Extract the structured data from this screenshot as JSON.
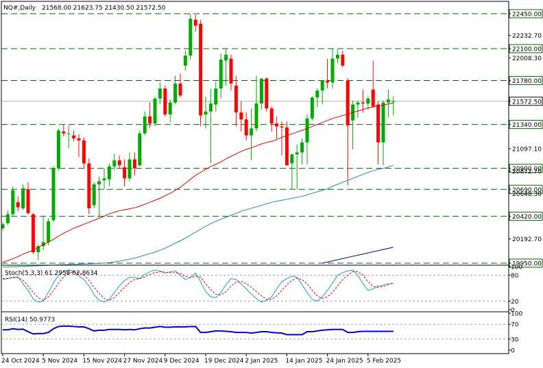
{
  "header": {
    "symbol": "NQ#,Daily",
    "ohlc": "21568.00 21623.75 21430.50 21572.50"
  },
  "colors": {
    "bull": "#00aa00",
    "bear": "#ff0000",
    "ma_fast": "#dd0000",
    "ma_slow": "#1a8fa0",
    "trendline": "#000080",
    "level_line": "#006400",
    "price_tag_bg": "#ffffff",
    "stoch_main": "#1aa0c0",
    "stoch_signal": "#dd0000",
    "rsi": "#0000cc"
  },
  "chart_data": {
    "type": "candlestick",
    "title": "NQ#,Daily",
    "price_axis": {
      "min": 19950,
      "max": 22450,
      "ticks": [
        "22450.00",
        "22232.70",
        "22100.00",
        "22008.30",
        "21780.00",
        "21572.50",
        "21340.00",
        "21097.10",
        "20900.00",
        "20872.70",
        "20690.00",
        "20648.30",
        "20420.00",
        "20192.70",
        "19950.00"
      ],
      "tick_values": [
        22450,
        22232.7,
        22100,
        22008.3,
        21780,
        21572.5,
        21340,
        21097.1,
        20900,
        20872.7,
        20690,
        20648.3,
        20420,
        20192.7,
        19950
      ],
      "highlighted": [
        "22450.00",
        "22100.00",
        "21780.00",
        "21572.50",
        "21340.00",
        "20900.00",
        "20690.00",
        "20420.00",
        "19950.00"
      ]
    },
    "horizontal_levels": [
      22450,
      22100,
      21780,
      21340,
      20900,
      20690,
      20420,
      19950
    ],
    "current_price": 21572.5,
    "x_labels": [
      "24 Oct 2024",
      "5 Nov 2024",
      "15 Nov 2024",
      "27 Nov 2024",
      "9 Dec 2024",
      "19 Dec 2024",
      "2 Jan 2025",
      "14 Jan 2025",
      "24 Jan 2025",
      "5 Feb 2025"
    ],
    "x_label_index": [
      0,
      8,
      16,
      24,
      32,
      40,
      48,
      56,
      64,
      72
    ],
    "candles": [
      {
        "o": 20300,
        "h": 20360,
        "l": 20280,
        "c": 20340
      },
      {
        "o": 20350,
        "h": 20480,
        "l": 20330,
        "c": 20440
      },
      {
        "o": 20440,
        "h": 20720,
        "l": 20420,
        "c": 20680
      },
      {
        "o": 20560,
        "h": 20620,
        "l": 20470,
        "c": 20510
      },
      {
        "o": 20500,
        "h": 20740,
        "l": 20480,
        "c": 20700
      },
      {
        "o": 20690,
        "h": 20760,
        "l": 20440,
        "c": 20450
      },
      {
        "o": 20440,
        "h": 20450,
        "l": 20040,
        "c": 20060
      },
      {
        "o": 20060,
        "h": 20140,
        "l": 19980,
        "c": 20120
      },
      {
        "o": 20120,
        "h": 20420,
        "l": 20080,
        "c": 20160
      },
      {
        "o": 20160,
        "h": 20400,
        "l": 20130,
        "c": 20370
      },
      {
        "o": 20380,
        "h": 20920,
        "l": 20360,
        "c": 20900
      },
      {
        "o": 20900,
        "h": 21300,
        "l": 20880,
        "c": 21280
      },
      {
        "o": 21270,
        "h": 21340,
        "l": 21220,
        "c": 21250
      },
      {
        "o": 21250,
        "h": 21330,
        "l": 21100,
        "c": 21250
      },
      {
        "o": 21230,
        "h": 21280,
        "l": 21170,
        "c": 21200
      },
      {
        "o": 21200,
        "h": 21240,
        "l": 21010,
        "c": 21180
      },
      {
        "o": 21180,
        "h": 21210,
        "l": 20900,
        "c": 20950
      },
      {
        "o": 20950,
        "h": 21000,
        "l": 20440,
        "c": 20500
      },
      {
        "o": 20530,
        "h": 20760,
        "l": 20500,
        "c": 20740
      },
      {
        "o": 20740,
        "h": 20820,
        "l": 20410,
        "c": 20770
      },
      {
        "o": 20780,
        "h": 20900,
        "l": 20690,
        "c": 20800
      },
      {
        "o": 20790,
        "h": 20950,
        "l": 20720,
        "c": 20920
      },
      {
        "o": 20920,
        "h": 21050,
        "l": 20880,
        "c": 20980
      },
      {
        "o": 20980,
        "h": 21030,
        "l": 20900,
        "c": 20930
      },
      {
        "o": 20910,
        "h": 20990,
        "l": 20720,
        "c": 20800
      },
      {
        "o": 20800,
        "h": 21060,
        "l": 20770,
        "c": 20990
      },
      {
        "o": 20990,
        "h": 21060,
        "l": 20830,
        "c": 20900
      },
      {
        "o": 20930,
        "h": 21280,
        "l": 20920,
        "c": 21250
      },
      {
        "o": 21250,
        "h": 21470,
        "l": 21230,
        "c": 21420
      },
      {
        "o": 21420,
        "h": 21560,
        "l": 21310,
        "c": 21350
      },
      {
        "o": 21350,
        "h": 21620,
        "l": 21320,
        "c": 21600
      },
      {
        "o": 21600,
        "h": 21760,
        "l": 21540,
        "c": 21700
      },
      {
        "o": 21700,
        "h": 21730,
        "l": 21420,
        "c": 21440
      },
      {
        "o": 21440,
        "h": 21590,
        "l": 21360,
        "c": 21560
      },
      {
        "o": 21560,
        "h": 21830,
        "l": 21540,
        "c": 21750
      },
      {
        "o": 21750,
        "h": 21850,
        "l": 21610,
        "c": 21630
      },
      {
        "o": 21930,
        "h": 22080,
        "l": 21880,
        "c": 22030
      },
      {
        "o": 22030,
        "h": 22450,
        "l": 21990,
        "c": 22400
      },
      {
        "o": 22390,
        "h": 22440,
        "l": 22270,
        "c": 22330
      },
      {
        "o": 22350,
        "h": 22390,
        "l": 21320,
        "c": 21430
      },
      {
        "o": 21440,
        "h": 21620,
        "l": 21300,
        "c": 21470
      },
      {
        "o": 21470,
        "h": 21700,
        "l": 20950,
        "c": 21550
      },
      {
        "o": 21540,
        "h": 21770,
        "l": 21470,
        "c": 21700
      },
      {
        "o": 21700,
        "h": 22050,
        "l": 21600,
        "c": 21990
      },
      {
        "o": 21980,
        "h": 22100,
        "l": 21730,
        "c": 22040
      },
      {
        "o": 22000,
        "h": 22040,
        "l": 21680,
        "c": 21750
      },
      {
        "o": 21730,
        "h": 21830,
        "l": 21320,
        "c": 21460
      },
      {
        "o": 21460,
        "h": 21570,
        "l": 21270,
        "c": 21390
      },
      {
        "o": 21390,
        "h": 21460,
        "l": 21180,
        "c": 21230
      },
      {
        "o": 21230,
        "h": 21500,
        "l": 20980,
        "c": 21300
      },
      {
        "o": 21300,
        "h": 21830,
        "l": 21270,
        "c": 21550
      },
      {
        "o": 21550,
        "h": 21800,
        "l": 21490,
        "c": 21800
      },
      {
        "o": 21800,
        "h": 21810,
        "l": 21470,
        "c": 21500
      },
      {
        "o": 21500,
        "h": 21520,
        "l": 21270,
        "c": 21350
      },
      {
        "o": 21350,
        "h": 21420,
        "l": 21200,
        "c": 21320
      },
      {
        "o": 21320,
        "h": 21370,
        "l": 21030,
        "c": 21310
      },
      {
        "o": 21310,
        "h": 21370,
        "l": 20930,
        "c": 20930
      },
      {
        "o": 20950,
        "h": 21050,
        "l": 20690,
        "c": 21040
      },
      {
        "o": 21040,
        "h": 21140,
        "l": 20690,
        "c": 21060
      },
      {
        "o": 21060,
        "h": 21200,
        "l": 20940,
        "c": 21160
      },
      {
        "o": 21160,
        "h": 21440,
        "l": 20940,
        "c": 21400
      },
      {
        "o": 21400,
        "h": 21620,
        "l": 21380,
        "c": 21610
      },
      {
        "o": 21610,
        "h": 21700,
        "l": 21510,
        "c": 21680
      },
      {
        "o": 21680,
        "h": 21780,
        "l": 21540,
        "c": 21780
      },
      {
        "o": 21780,
        "h": 22000,
        "l": 21700,
        "c": 21760
      },
      {
        "o": 21760,
        "h": 22100,
        "l": 21700,
        "c": 22000
      },
      {
        "o": 22000,
        "h": 22090,
        "l": 21950,
        "c": 22040
      },
      {
        "o": 22040,
        "h": 22080,
        "l": 21910,
        "c": 21930
      },
      {
        "o": 21780,
        "h": 21800,
        "l": 20730,
        "c": 21330
      },
      {
        "o": 21380,
        "h": 21580,
        "l": 21090,
        "c": 21540
      },
      {
        "o": 21540,
        "h": 21580,
        "l": 21410,
        "c": 21560
      },
      {
        "o": 21560,
        "h": 21690,
        "l": 21460,
        "c": 21550
      },
      {
        "o": 21550,
        "h": 21620,
        "l": 21490,
        "c": 21600
      },
      {
        "o": 21690,
        "h": 21980,
        "l": 21520,
        "c": 21520
      },
      {
        "o": 21540,
        "h": 21570,
        "l": 20940,
        "c": 21160
      },
      {
        "o": 21160,
        "h": 21580,
        "l": 20930,
        "c": 21560
      },
      {
        "o": 21560,
        "h": 21690,
        "l": 21410,
        "c": 21590
      },
      {
        "o": 21568,
        "h": 21624,
        "l": 21430,
        "c": 21572
      }
    ],
    "ma_fast": [
      19960,
      19975,
      19995,
      20015,
      20040,
      20060,
      20080,
      20110,
      20135,
      20160,
      20190,
      20220,
      20250,
      20275,
      20300,
      20320,
      20340,
      20360,
      20380,
      20400,
      20420,
      20445,
      20460,
      20475,
      20485,
      20495,
      20505,
      20520,
      20540,
      20560,
      20580,
      20600,
      20625,
      20650,
      20680,
      20710,
      20750,
      20790,
      20830,
      20860,
      20890,
      20920,
      20940,
      20965,
      20995,
      21020,
      21045,
      21070,
      21090,
      21105,
      21125,
      21145,
      21160,
      21170,
      21190,
      21210,
      21230,
      21245,
      21265,
      21280,
      21300,
      21320,
      21340,
      21360,
      21380,
      21400,
      21415,
      21430,
      21440,
      21460,
      21475,
      21490,
      21505,
      21515,
      21525,
      21535,
      21545,
      21555
    ],
    "ma_slow": [
      19910,
      19912,
      19914,
      19916,
      19918,
      19920,
      19922,
      19924,
      19926,
      19928,
      19930,
      19932,
      19934,
      19936,
      19938,
      19940,
      19942,
      19944,
      19946,
      19948,
      19950,
      19955,
      19962,
      19970,
      19980,
      19990,
      20000,
      20015,
      20030,
      20045,
      20060,
      20080,
      20100,
      20125,
      20150,
      20175,
      20200,
      20230,
      20260,
      20290,
      20320,
      20345,
      20370,
      20390,
      20410,
      20430,
      20450,
      20470,
      20485,
      20500,
      20515,
      20530,
      20545,
      20560,
      20570,
      20580,
      20590,
      20600,
      20610,
      20620,
      20635,
      20650,
      20665,
      20680,
      20695,
      20720,
      20740,
      20760,
      20780,
      20800,
      20820,
      20840,
      20860,
      20875,
      20890,
      20900,
      20915,
      20930
    ],
    "trendline": {
      "x0_index": 63,
      "y0": 19950,
      "x1_index": 77,
      "y1": 20110
    },
    "stochastic": {
      "label": "Stoch(5,3,3) 61.2958 62.8634",
      "levels": [
        100,
        80,
        20,
        0
      ],
      "level_labels": [
        "100",
        "80",
        "20",
        "0"
      ],
      "dashed_levels": [
        80,
        20
      ],
      "main": [
        70,
        72,
        75,
        76,
        60,
        45,
        25,
        18,
        20,
        40,
        62,
        80,
        88,
        92,
        89,
        78,
        70,
        55,
        35,
        22,
        18,
        24,
        40,
        55,
        68,
        75,
        75,
        72,
        82,
        88,
        92,
        90,
        85,
        88,
        90,
        80,
        70,
        75,
        85,
        65,
        42,
        30,
        28,
        40,
        58,
        72,
        70,
        60,
        48,
        36,
        26,
        18,
        22,
        30,
        48,
        65,
        72,
        78,
        75,
        58,
        40,
        24,
        20,
        30,
        45,
        62,
        80,
        86,
        90,
        92,
        80,
        60,
        45,
        48,
        55,
        57,
        60,
        61
      ],
      "signal": [
        72,
        73,
        74,
        75,
        68,
        55,
        40,
        28,
        22,
        30,
        45,
        62,
        76,
        85,
        88,
        86,
        80,
        68,
        52,
        38,
        26,
        22,
        28,
        40,
        52,
        63,
        70,
        72,
        76,
        82,
        86,
        88,
        87,
        86,
        86,
        84,
        78,
        74,
        78,
        75,
        60,
        46,
        36,
        34,
        42,
        55,
        64,
        66,
        60,
        52,
        42,
        32,
        24,
        24,
        32,
        45,
        58,
        68,
        73,
        70,
        60,
        45,
        32,
        26,
        30,
        40,
        55,
        70,
        80,
        88,
        88,
        80,
        65,
        54,
        52,
        54,
        58,
        63
      ]
    },
    "rsi": {
      "label": "RSI(14) 50.9773",
      "levels": [
        100,
        70,
        30,
        0
      ],
      "level_labels": [
        "100",
        "70",
        "30",
        "0"
      ],
      "dashed_levels": [
        70,
        30
      ],
      "values": [
        55,
        55,
        58,
        56,
        57,
        50,
        44,
        45,
        45,
        48,
        58,
        64,
        65,
        65,
        64,
        63,
        63,
        58,
        52,
        54,
        54,
        56,
        56,
        56,
        55,
        56,
        55,
        58,
        60,
        60,
        62,
        64,
        62,
        62,
        63,
        63,
        63,
        64,
        64,
        48,
        48,
        50,
        52,
        52,
        51,
        50,
        48,
        48,
        48,
        46,
        48,
        50,
        50,
        48,
        47,
        46,
        42,
        42,
        42,
        42,
        50,
        50,
        52,
        54,
        55,
        56,
        56,
        56,
        48,
        48,
        50,
        51,
        51,
        51,
        51,
        51,
        51,
        51
      ]
    }
  }
}
